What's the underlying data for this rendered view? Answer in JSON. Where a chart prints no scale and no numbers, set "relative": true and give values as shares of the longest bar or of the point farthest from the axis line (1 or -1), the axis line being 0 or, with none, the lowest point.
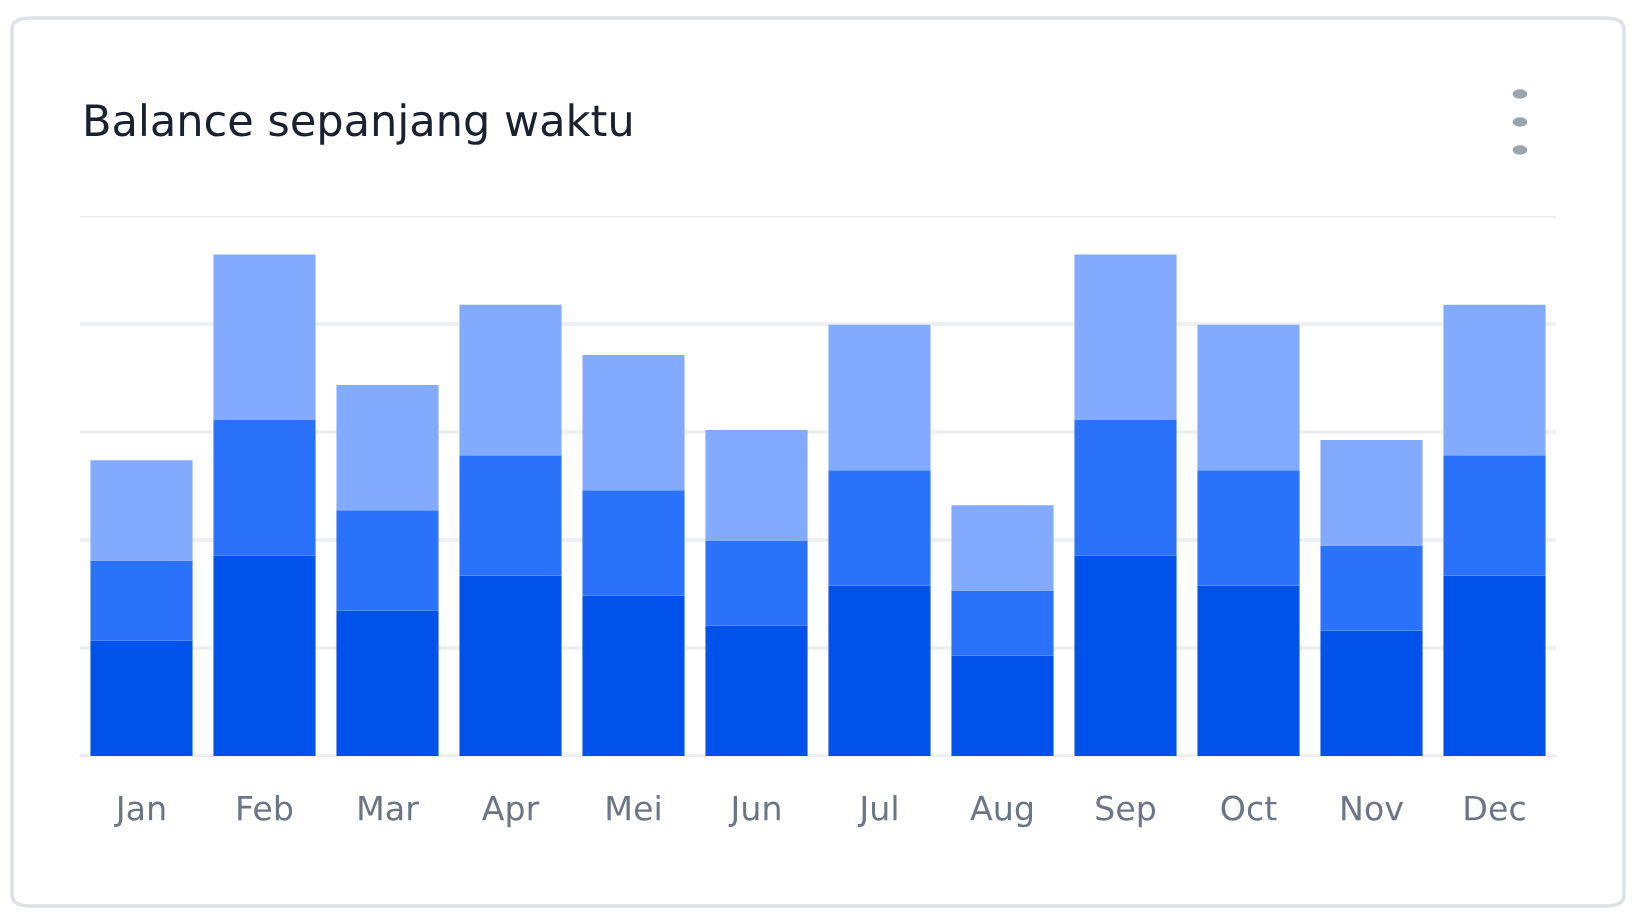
{
  "chart_data": {
    "type": "bar",
    "title": "Balance sepanjang waktu",
    "stacked": true,
    "relative": true,
    "grid": "y",
    "legend": false,
    "categories": [
      "Jan",
      "Feb",
      "Mar",
      "Apr",
      "Mei",
      "Jun",
      "Jul",
      "Aug",
      "Sep",
      "Oct",
      "Nov",
      "Dec"
    ],
    "series": [
      {
        "color": "#0052ea",
        "values": [
          0.23,
          0.4,
          0.29,
          0.36,
          0.32,
          0.26,
          0.34,
          0.2,
          0.4,
          0.34,
          0.25,
          0.36
        ]
      },
      {
        "color": "#2b72fb",
        "values": [
          0.16,
          0.27,
          0.2,
          0.24,
          0.21,
          0.17,
          0.23,
          0.13,
          0.27,
          0.23,
          0.17,
          0.24
        ]
      },
      {
        "color": "#82aafe",
        "values": [
          0.2,
          0.33,
          0.25,
          0.3,
          0.27,
          0.22,
          0.29,
          0.17,
          0.33,
          0.29,
          0.21,
          0.3
        ]
      }
    ]
  }
}
